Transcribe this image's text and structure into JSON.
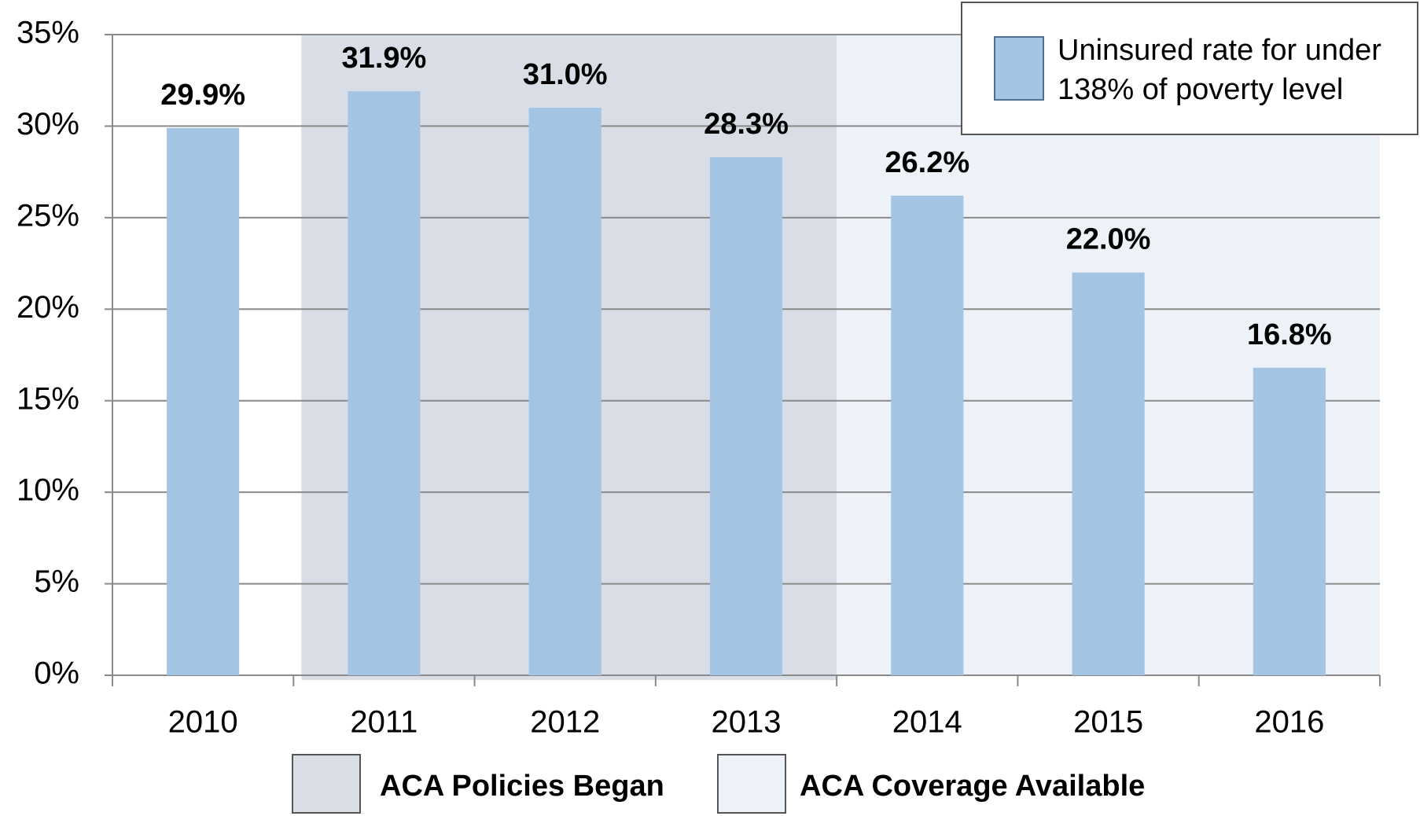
{
  "chart_data": {
    "type": "bar",
    "categories": [
      "2010",
      "2011",
      "2012",
      "2013",
      "2014",
      "2015",
      "2016"
    ],
    "series": [
      {
        "name": "Uninsured rate for under 138% of poverty level",
        "color": "#a3c4e3",
        "values": [
          29.9,
          31.9,
          31.0,
          28.3,
          26.2,
          22.0,
          16.8
        ],
        "value_labels": [
          "29.9%",
          "31.9%",
          "31.0%",
          "28.3%",
          "26.2%",
          "22.0%",
          "16.8%"
        ]
      }
    ],
    "ylim": [
      0,
      35
    ],
    "yticks": [
      {
        "value": 0,
        "label": "0%"
      },
      {
        "value": 5,
        "label": "5%"
      },
      {
        "value": 10,
        "label": "10%"
      },
      {
        "value": 15,
        "label": "15%"
      },
      {
        "value": 20,
        "label": "20%"
      },
      {
        "value": 25,
        "label": "25%"
      },
      {
        "value": 30,
        "label": "30%"
      },
      {
        "value": 35,
        "label": "35%"
      }
    ],
    "grid": true,
    "legend_position": "upper right",
    "bands": [
      {
        "label": "ACA Policies Began",
        "color": "#d9dde6",
        "categories": [
          "2011",
          "2012",
          "2013"
        ]
      },
      {
        "label": "ACA Coverage Available",
        "color": "#edf1f8",
        "categories": [
          "2014",
          "2015",
          "2016"
        ]
      }
    ]
  }
}
